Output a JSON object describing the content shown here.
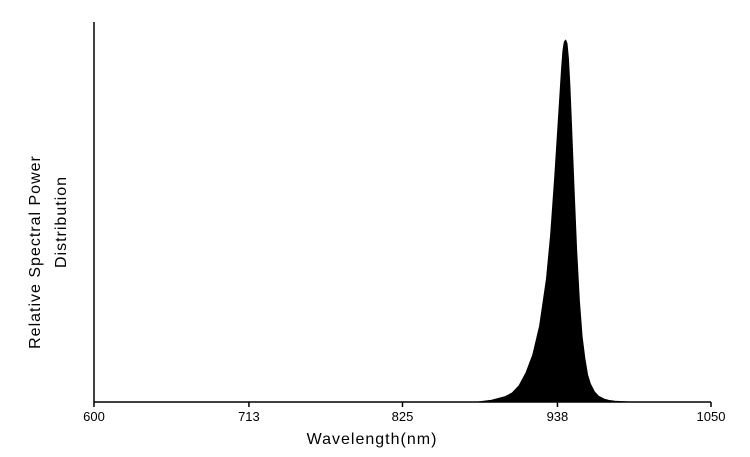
{
  "chart_data": {
    "type": "area",
    "title": "",
    "xlabel": "Wavelength(nm)",
    "ylabel_lines": [
      "Relative Spectral Power",
      "Distribution"
    ],
    "xlim": [
      600,
      1050
    ],
    "ylim": [
      0,
      1.05
    ],
    "x_ticks": [
      600,
      713,
      825,
      938,
      1050
    ],
    "x_tick_labels": [
      "600",
      "713",
      "825",
      "938",
      "1050"
    ],
    "y_ticks_shown": false,
    "grid": false,
    "legend": "none",
    "fill_color": "#000000",
    "series": [
      {
        "x": [
          880,
          890,
          900,
          905,
          910,
          915,
          920,
          925,
          930,
          933,
          936,
          938,
          940,
          941,
          942,
          943,
          944,
          945,
          946,
          947,
          948,
          950,
          952,
          954,
          956,
          958,
          960,
          962,
          965,
          968,
          972,
          976,
          980,
          985,
          990
        ],
        "y": [
          0.0,
          0.005,
          0.015,
          0.025,
          0.045,
          0.08,
          0.13,
          0.21,
          0.34,
          0.46,
          0.62,
          0.74,
          0.86,
          0.92,
          0.97,
          0.995,
          1.0,
          0.99,
          0.95,
          0.88,
          0.79,
          0.6,
          0.42,
          0.28,
          0.18,
          0.12,
          0.075,
          0.05,
          0.028,
          0.016,
          0.008,
          0.004,
          0.002,
          0.001,
          0.0
        ]
      }
    ]
  }
}
